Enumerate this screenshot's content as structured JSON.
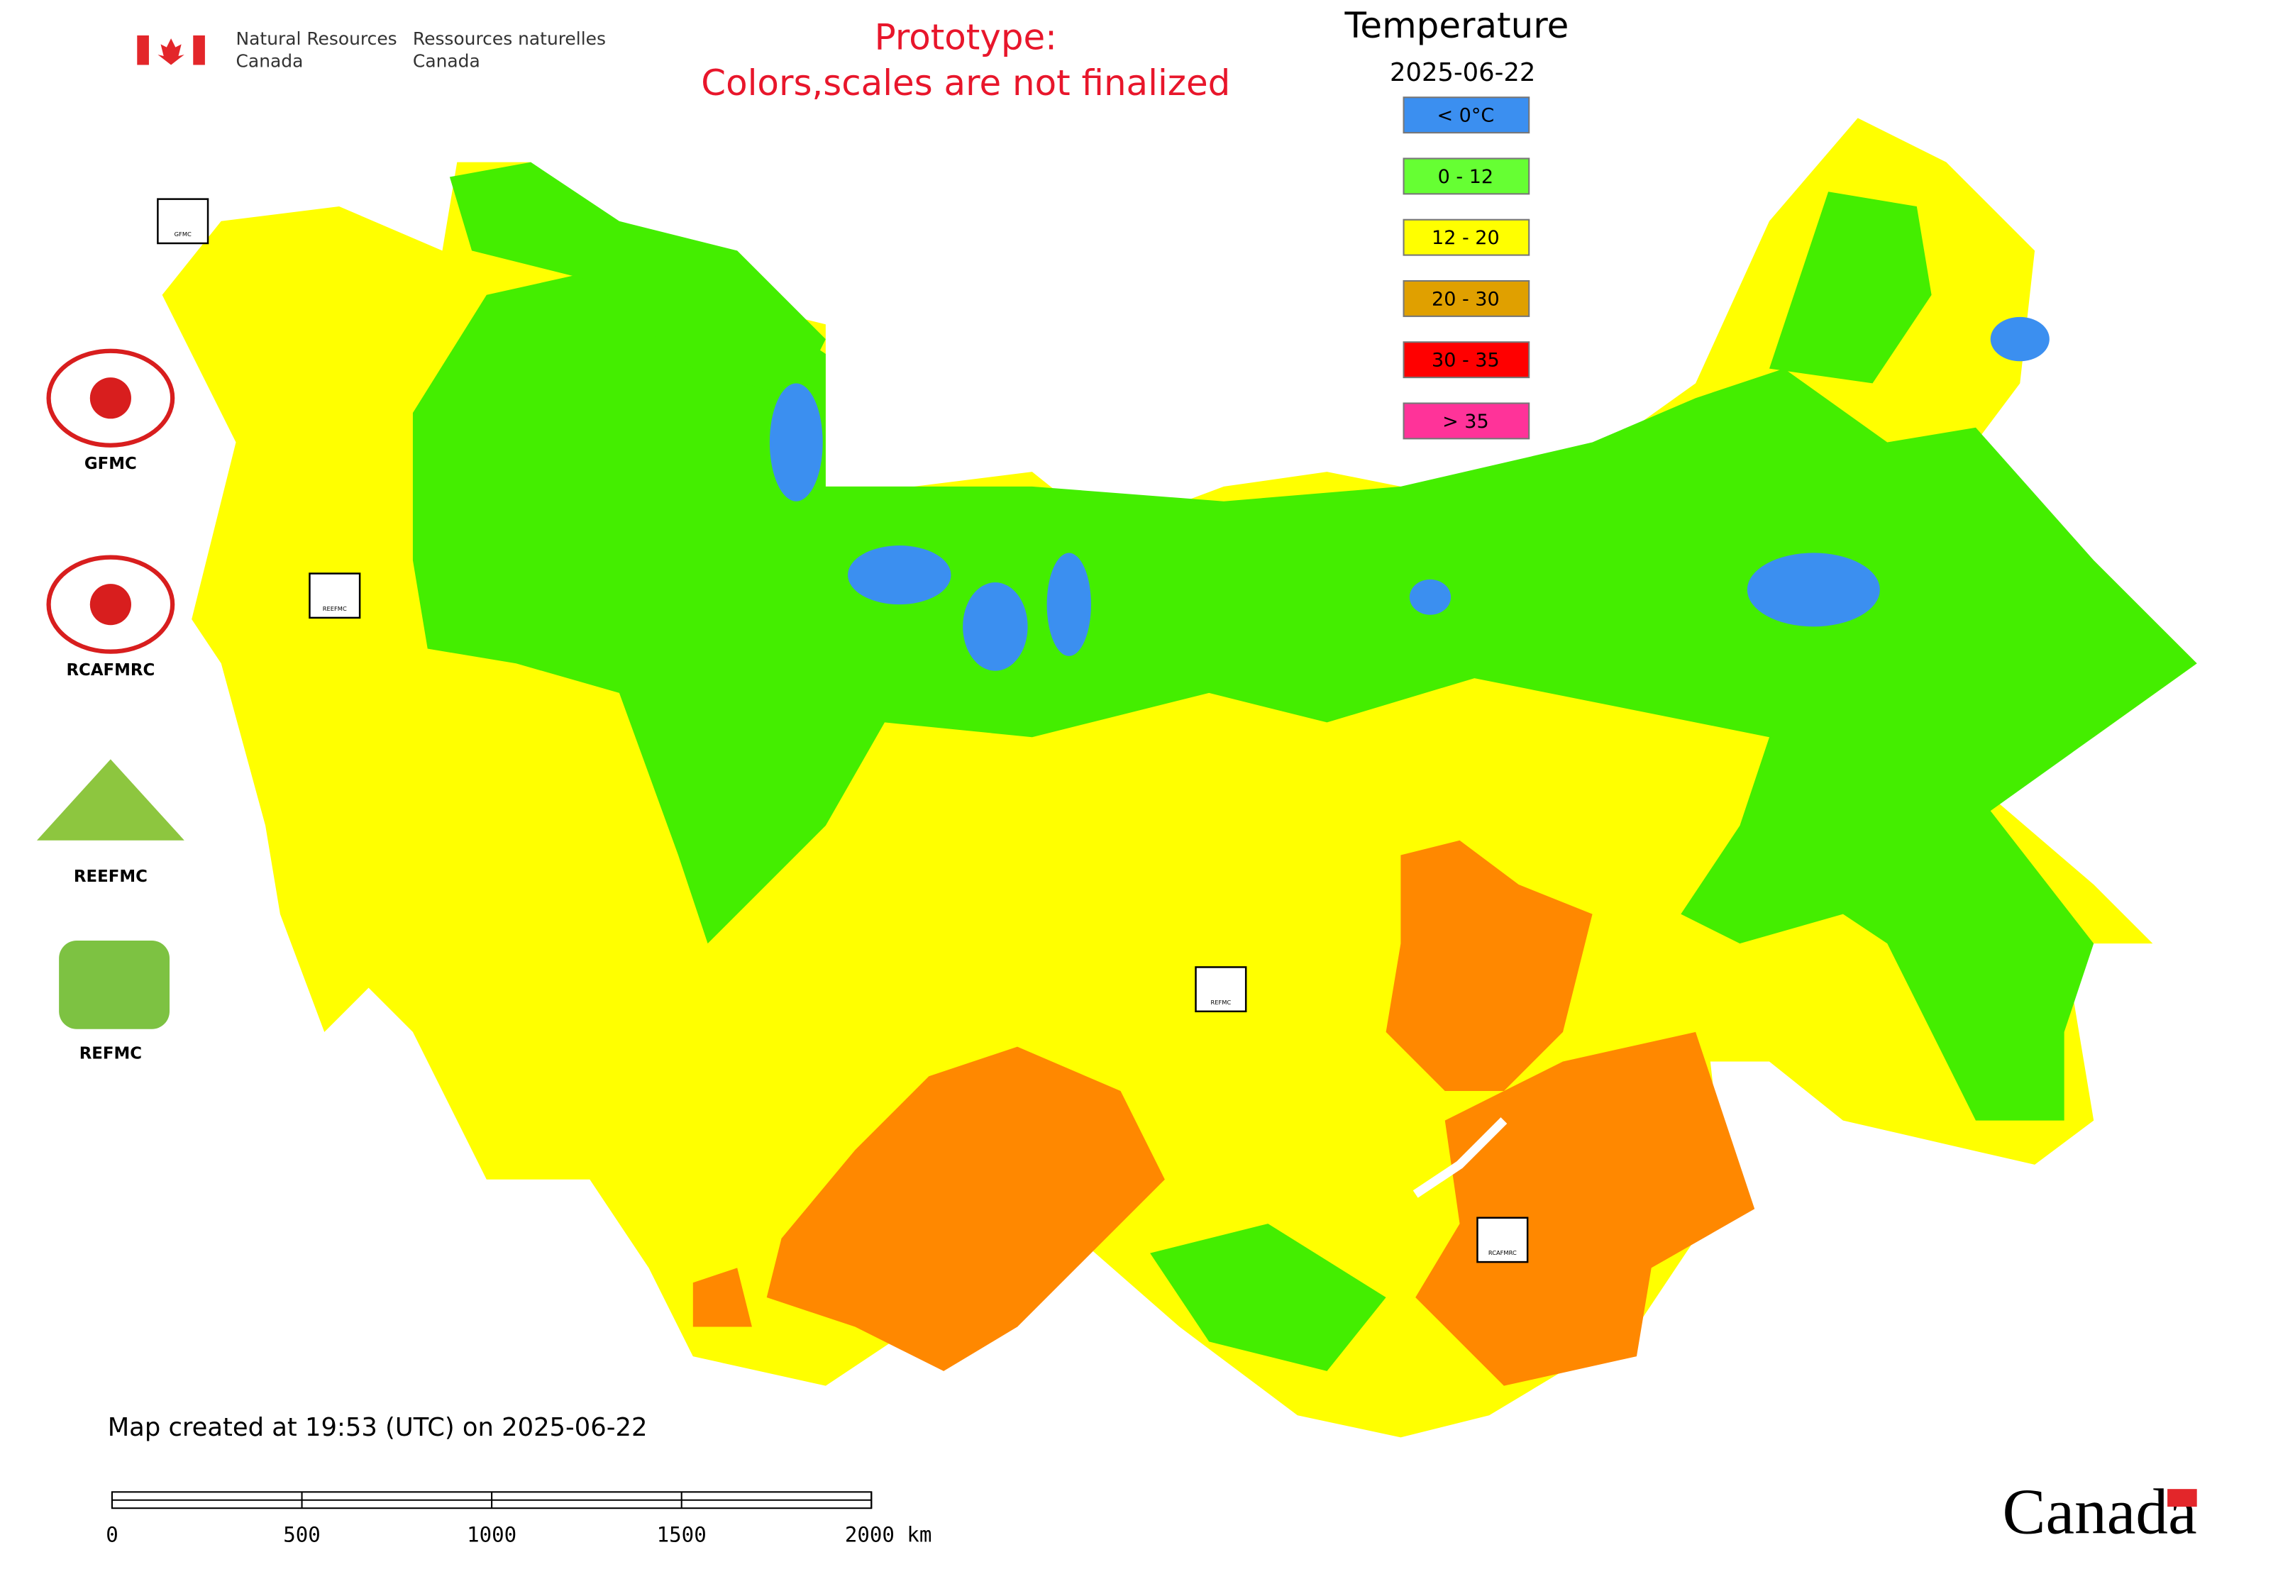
{
  "header": {
    "org_en": [
      "Natural Resources",
      "Canada"
    ],
    "org_fr": [
      "Ressources naturelles",
      "Canada"
    ],
    "notice": [
      "Prototype:",
      "Colors,scales are not finalized"
    ]
  },
  "legend": {
    "title": "Temperature",
    "date": "2025-06-22",
    "items": [
      {
        "label": "< 0°C",
        "color": "#3b8ff0"
      },
      {
        "label": "0 - 12",
        "color": "#66ff33"
      },
      {
        "label": "12 - 20",
        "color": "#ffff00"
      },
      {
        "label": "20 - 30",
        "color": "#e0a000"
      },
      {
        "label": "30 - 35",
        "color": "#ff0000"
      },
      {
        "label": "> 35",
        "color": "#ff3399"
      }
    ]
  },
  "logos": [
    "GFMC",
    "RCAFMRC",
    "REEFMC",
    "REFMC"
  ],
  "map_markers": [
    "GFMC",
    "REEFMC",
    "REFMC",
    "RCAFMRC"
  ],
  "footer": {
    "created": "Map created at 19:53 (UTC) on 2025-06-22",
    "scale_labels": [
      "0",
      "500",
      "1000",
      "1500",
      "2000 km"
    ],
    "wordmark": "Canada"
  }
}
